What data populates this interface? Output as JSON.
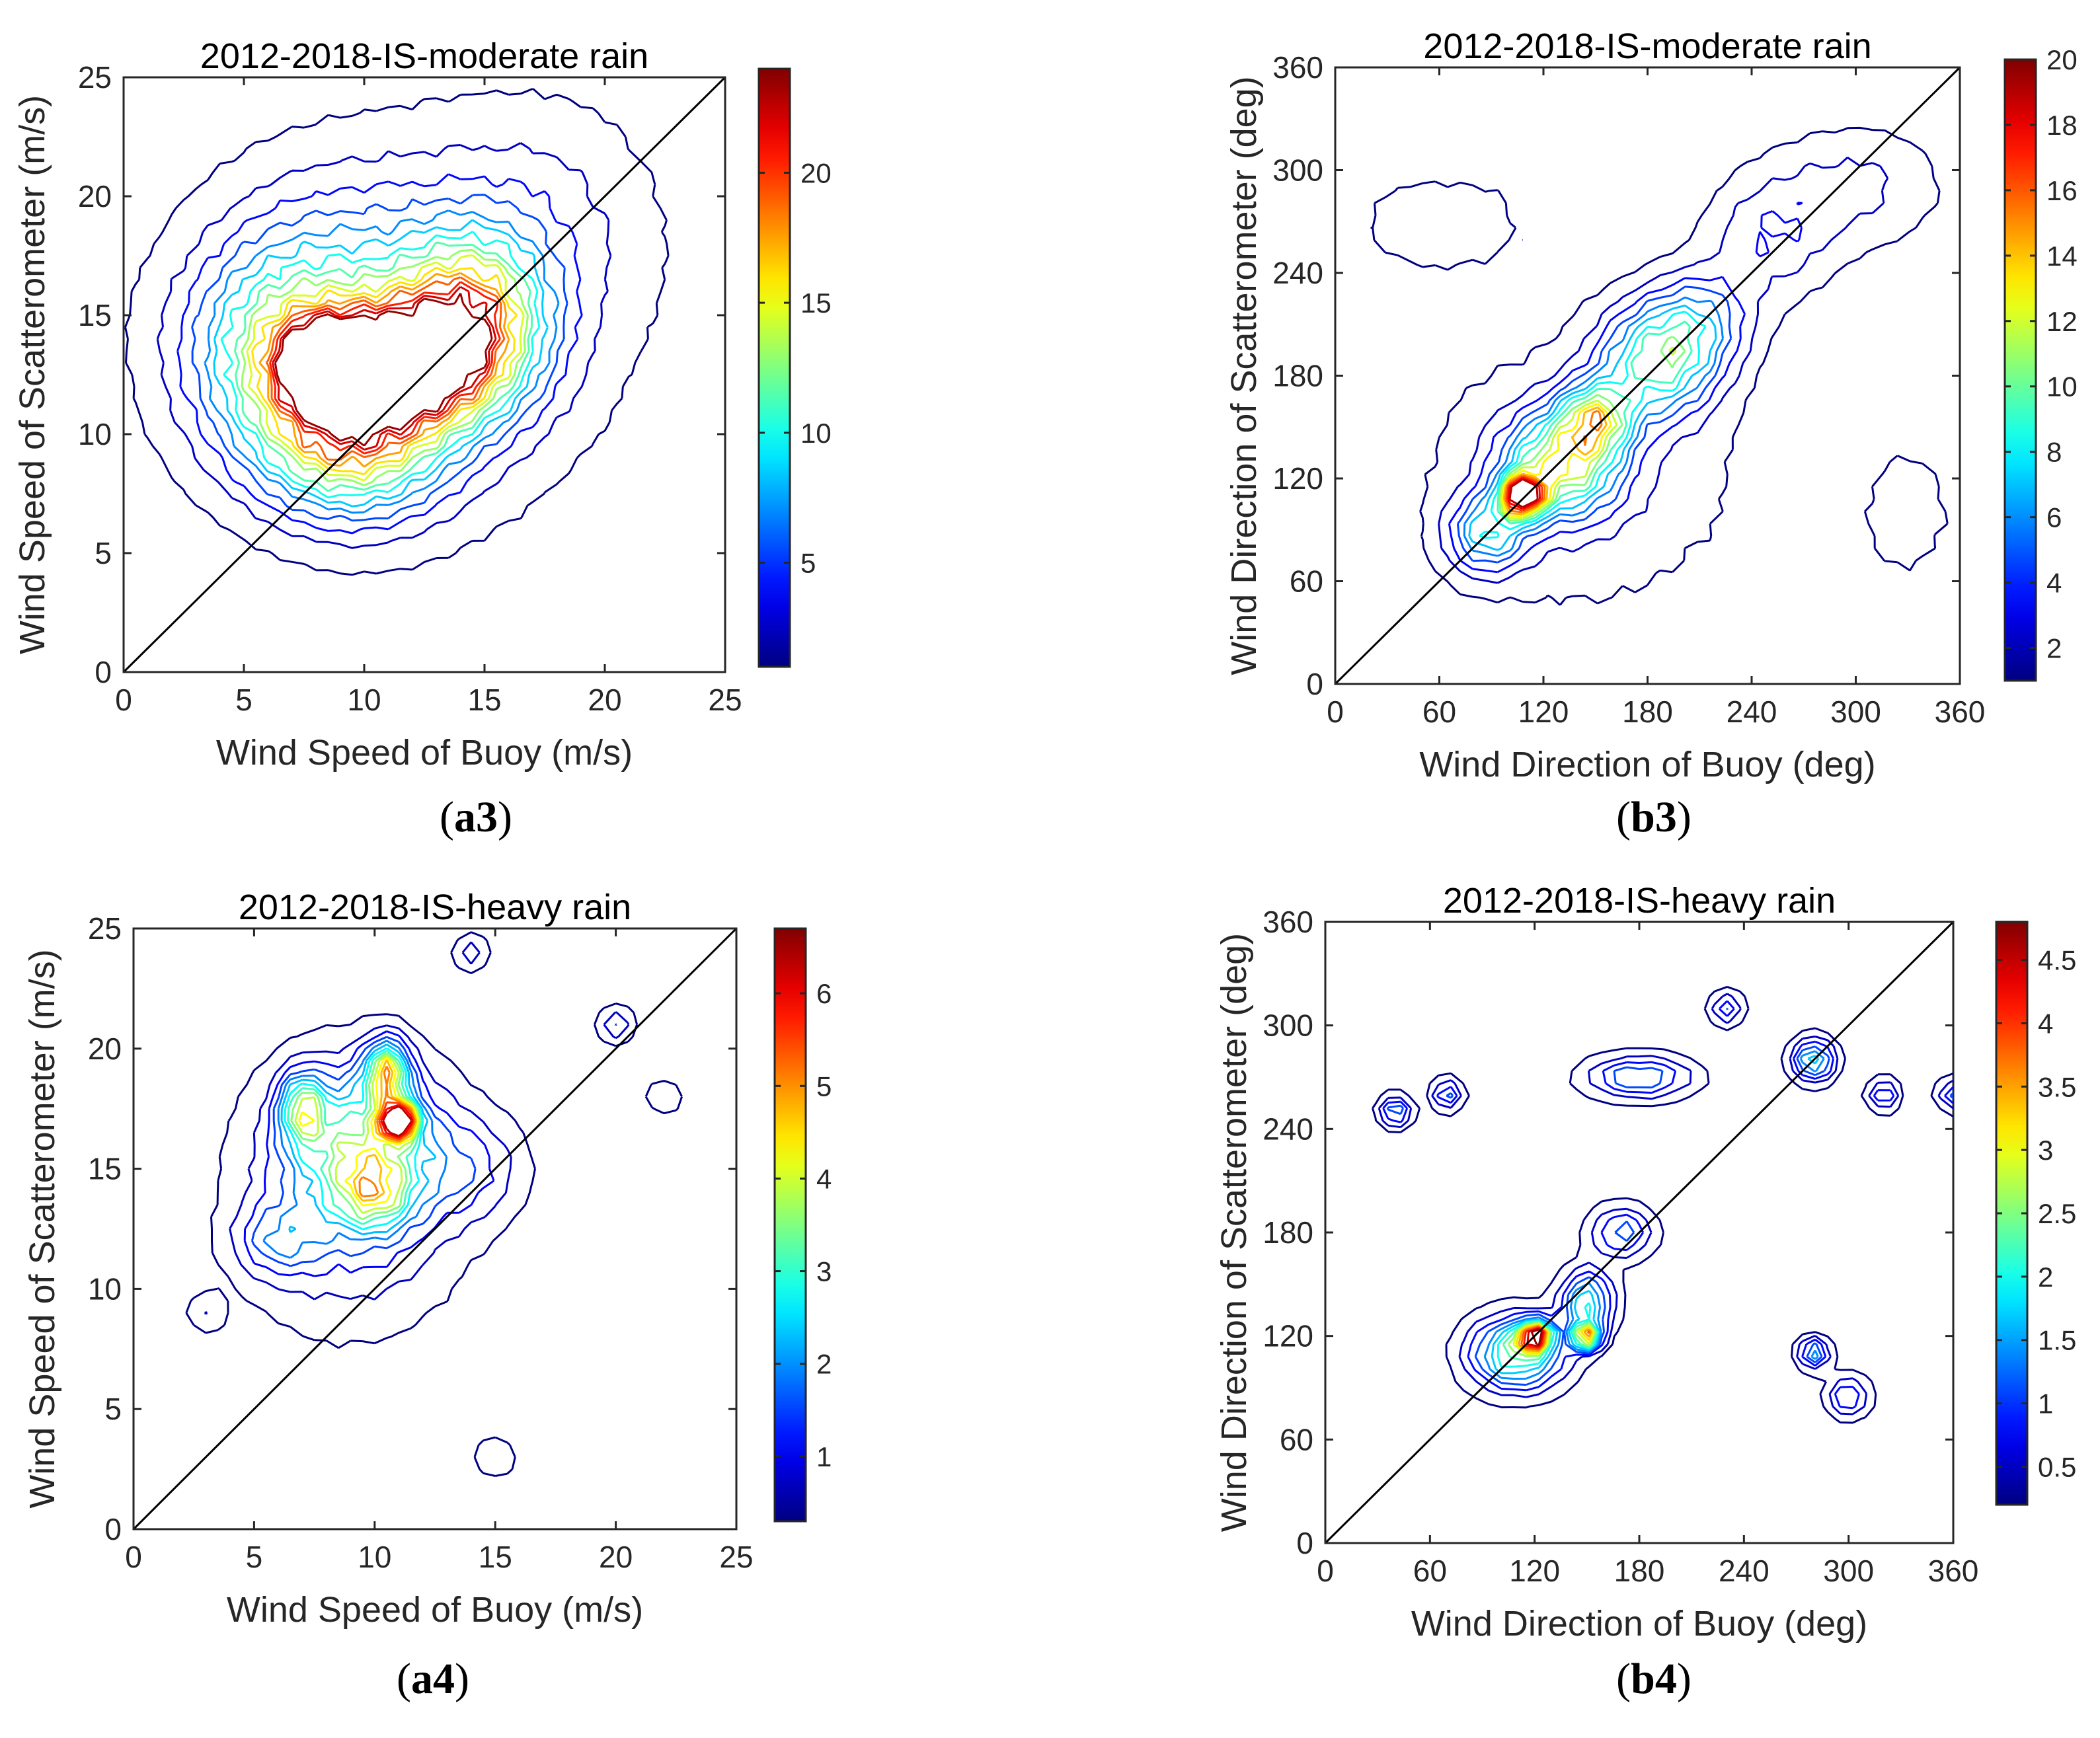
{
  "figure_labels": [
    {
      "open": "(",
      "label": "a3",
      "close": ")"
    },
    {
      "open": "(",
      "label": "b3",
      "close": ")"
    },
    {
      "open": "(",
      "label": "a4",
      "close": ")"
    },
    {
      "open": "(",
      "label": "b4",
      "close": ")"
    }
  ],
  "chart_data": [
    {
      "id": "a3",
      "type": "contour",
      "title": "2012-2018-IS-moderate rain",
      "xlabel": "Wind Speed of Buoy (m/s)",
      "ylabel": "Wind Speed of Scatterometer (m/s)",
      "xlim": [
        0,
        25
      ],
      "ylim": [
        0,
        25
      ],
      "xticks": [
        0,
        5,
        10,
        15,
        20,
        25
      ],
      "yticks": [
        0,
        5,
        10,
        15,
        20,
        25
      ],
      "reference_line": [
        [
          0,
          0
        ],
        [
          25,
          25
        ]
      ],
      "colorbar": {
        "min": 1,
        "max": 24,
        "ticks": [
          5,
          10,
          15,
          20
        ]
      },
      "contour_levels": [
        1,
        2.5,
        4,
        5.5,
        7,
        8.5,
        10,
        11.5,
        13,
        14.5,
        16,
        17.5,
        19,
        20.5,
        22,
        23.5
      ],
      "density_peaks": [
        {
          "x": 8.5,
          "y": 13,
          "value": 23.5,
          "sx": 1.2,
          "sy": 1.1
        },
        {
          "x": 12,
          "y": 13,
          "value": 20,
          "sx": 2.3,
          "sy": 1.8
        },
        {
          "x": 9.5,
          "y": 10,
          "value": 15,
          "sx": 2.5,
          "sy": 2.2
        },
        {
          "x": 14.5,
          "y": 15,
          "value": 13,
          "sx": 2.0,
          "sy": 2.3
        },
        {
          "x": 6.5,
          "y": 13.5,
          "value": 10,
          "sx": 2.5,
          "sy": 2.8
        },
        {
          "x": 11,
          "y": 14,
          "value": 6,
          "sx": 5.0,
          "sy": 4.5
        },
        {
          "x": 17,
          "y": 19,
          "value": 2.5,
          "sx": 3.5,
          "sy": 3.5
        },
        {
          "x": 9,
          "y": 17,
          "value": 2.5,
          "sx": 3.0,
          "sy": 3.0
        }
      ]
    },
    {
      "id": "b3",
      "type": "contour",
      "title": "2012-2018-IS-moderate rain",
      "xlabel": "Wind Direction of Buoy (deg)",
      "ylabel": "Wind Direction of Scatterometer (deg)",
      "xlim": [
        0,
        360
      ],
      "ylim": [
        0,
        360
      ],
      "xticks": [
        0,
        60,
        120,
        180,
        240,
        300,
        360
      ],
      "yticks": [
        0,
        60,
        120,
        180,
        240,
        300,
        360
      ],
      "reference_line": [
        [
          0,
          0
        ],
        [
          360,
          360
        ]
      ],
      "colorbar": {
        "min": 1,
        "max": 20,
        "ticks": [
          2,
          4,
          6,
          8,
          10,
          12,
          14,
          16,
          18,
          20
        ]
      },
      "contour_levels": [
        1,
        2.2,
        3.4,
        4.6,
        5.8,
        7,
        8.2,
        9.4,
        10.6,
        11.8,
        13,
        14.2,
        15.4,
        16.6,
        17.8,
        19
      ],
      "density_peaks": [
        {
          "x": 108,
          "y": 110,
          "value": 20,
          "sx": 8,
          "sy": 8
        },
        {
          "x": 130,
          "y": 128,
          "value": 11,
          "sx": 22,
          "sy": 20
        },
        {
          "x": 150,
          "y": 155,
          "value": 10,
          "sx": 14,
          "sy": 14
        },
        {
          "x": 185,
          "y": 188,
          "value": 9,
          "sx": 22,
          "sy": 22
        },
        {
          "x": 88,
          "y": 88,
          "value": 7,
          "sx": 15,
          "sy": 15
        },
        {
          "x": 210,
          "y": 212,
          "value": 5,
          "sx": 20,
          "sy": 20
        },
        {
          "x": 250,
          "y": 260,
          "value": 3,
          "sx": 25,
          "sy": 25
        },
        {
          "x": 300,
          "y": 290,
          "value": 2.5,
          "sx": 35,
          "sy": 25
        },
        {
          "x": 60,
          "y": 270,
          "value": 1.5,
          "sx": 45,
          "sy": 25
        },
        {
          "x": 330,
          "y": 100,
          "value": 1.4,
          "sx": 25,
          "sy": 35
        },
        {
          "x": 140,
          "y": 120,
          "value": 2,
          "sx": 70,
          "sy": 60
        }
      ]
    },
    {
      "id": "a4",
      "type": "contour",
      "title": "2012-2018-IS-heavy rain",
      "xlabel": "Wind Speed of Buoy (m/s)",
      "ylabel": "Wind Speed of Scatterometer (m/s)",
      "xlim": [
        0,
        25
      ],
      "ylim": [
        0,
        25
      ],
      "xticks": [
        0,
        5,
        10,
        15,
        20,
        25
      ],
      "yticks": [
        0,
        5,
        10,
        15,
        20,
        25
      ],
      "reference_line": [
        [
          0,
          0
        ],
        [
          25,
          25
        ]
      ],
      "colorbar": {
        "min": 0.3,
        "max": 6.7,
        "ticks": [
          1,
          2,
          3,
          4,
          5,
          6
        ]
      },
      "contour_levels": [
        0.3,
        0.7,
        1.1,
        1.5,
        1.9,
        2.3,
        2.7,
        3.1,
        3.5,
        3.9,
        4.3,
        4.7,
        5.1,
        5.5,
        5.9,
        6.3
      ],
      "density_peaks": [
        {
          "x": 11,
          "y": 17,
          "value": 6.6,
          "sx": 0.5,
          "sy": 0.5
        },
        {
          "x": 10.5,
          "y": 19,
          "value": 4,
          "sx": 0.6,
          "sy": 0.9
        },
        {
          "x": 7,
          "y": 17.5,
          "value": 3,
          "sx": 0.6,
          "sy": 1.0
        },
        {
          "x": 9.5,
          "y": 16,
          "value": 2.5,
          "sx": 2.0,
          "sy": 2.0
        },
        {
          "x": 10,
          "y": 14,
          "value": 2.2,
          "sx": 1.0,
          "sy": 1.0
        },
        {
          "x": 9,
          "y": 14,
          "value": 1.5,
          "sx": 3.0,
          "sy": 3.5
        },
        {
          "x": 14,
          "y": 15,
          "value": 1,
          "sx": 1.5,
          "sy": 1.5
        },
        {
          "x": 6,
          "y": 12,
          "value": 1.3,
          "sx": 1.2,
          "sy": 1.0
        },
        {
          "x": 20,
          "y": 21,
          "value": 1.2,
          "sx": 0.5,
          "sy": 0.5
        },
        {
          "x": 14,
          "y": 24,
          "value": 1,
          "sx": 0.5,
          "sy": 0.5
        },
        {
          "x": 15,
          "y": 3,
          "value": 0.6,
          "sx": 0.7,
          "sy": 0.7
        },
        {
          "x": 3,
          "y": 9,
          "value": 0.6,
          "sx": 0.6,
          "sy": 0.6
        },
        {
          "x": 22,
          "y": 18,
          "value": 0.6,
          "sx": 0.6,
          "sy": 0.6
        }
      ]
    },
    {
      "id": "b4",
      "type": "contour",
      "title": "2012-2018-IS-heavy rain",
      "xlabel": "Wind Direction of Buoy (deg)",
      "ylabel": "Wind Direction of Scatterometer (deg)",
      "xlim": [
        0,
        360
      ],
      "ylim": [
        0,
        360
      ],
      "xticks": [
        0,
        60,
        120,
        180,
        240,
        300,
        360
      ],
      "yticks": [
        0,
        60,
        120,
        180,
        240,
        300,
        360
      ],
      "reference_line": [
        [
          0,
          0
        ],
        [
          360,
          360
        ]
      ],
      "colorbar": {
        "min": 0.2,
        "max": 4.8,
        "ticks": [
          0.5,
          1,
          1.5,
          2,
          2.5,
          3,
          3.5,
          4,
          4.5
        ]
      },
      "contour_levels": [
        0.2,
        0.5,
        0.8,
        1.1,
        1.4,
        1.7,
        2.0,
        2.3,
        2.6,
        2.9,
        3.2,
        3.5,
        3.8,
        4.1,
        4.4,
        4.7
      ],
      "density_peaks": [
        {
          "x": 120,
          "y": 120,
          "value": 4.8,
          "sx": 6,
          "sy": 5
        },
        {
          "x": 150,
          "y": 120,
          "value": 4,
          "sx": 5,
          "sy": 5
        },
        {
          "x": 110,
          "y": 110,
          "value": 2.5,
          "sx": 18,
          "sy": 14
        },
        {
          "x": 150,
          "y": 140,
          "value": 2,
          "sx": 10,
          "sy": 12
        },
        {
          "x": 280,
          "y": 280,
          "value": 2,
          "sx": 8,
          "sy": 8
        },
        {
          "x": 180,
          "y": 270,
          "value": 1.5,
          "sx": 20,
          "sy": 8
        },
        {
          "x": 300,
          "y": 85,
          "value": 1.2,
          "sx": 8,
          "sy": 8
        },
        {
          "x": 70,
          "y": 260,
          "value": 1.2,
          "sx": 6,
          "sy": 6
        },
        {
          "x": 230,
          "y": 310,
          "value": 1.2,
          "sx": 6,
          "sy": 6
        },
        {
          "x": 320,
          "y": 260,
          "value": 1.2,
          "sx": 6,
          "sy": 6
        },
        {
          "x": 360,
          "y": 260,
          "value": 1.2,
          "sx": 6,
          "sy": 6
        },
        {
          "x": 280,
          "y": 110,
          "value": 1.6,
          "sx": 6,
          "sy": 6
        },
        {
          "x": 40,
          "y": 250,
          "value": 1.5,
          "sx": 6,
          "sy": 6
        },
        {
          "x": 170,
          "y": 180,
          "value": 1.3,
          "sx": 12,
          "sy": 10
        }
      ]
    }
  ]
}
